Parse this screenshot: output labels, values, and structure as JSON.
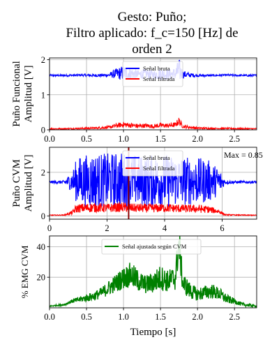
{
  "figure": {
    "title_lines": [
      "Gesto: Puño;",
      "Filtro aplicado: f_c=150 [Hz] de",
      "orden 2"
    ]
  },
  "chart_data": [
    {
      "id": "funcional",
      "type": "line",
      "ylabel_lines": [
        "Puño Funcional",
        "Amplitud [V]"
      ],
      "xlabel": "",
      "xlim": [
        0,
        2.8
      ],
      "ylim": [
        0,
        2.05
      ],
      "xticks": [
        0.0,
        0.5,
        1.0,
        1.5,
        2.0,
        2.5
      ],
      "xtick_labels": [
        "0.0",
        "0.5",
        "1.0",
        "1.5",
        "2.0",
        "2.5"
      ],
      "yticks": [
        0,
        1,
        2
      ],
      "ytick_labels": [
        "0",
        "1",
        "2"
      ],
      "grid": true,
      "legend_position": "top-center",
      "series": [
        {
          "name": "Señal bruta",
          "color": "#0000ff",
          "x": [
            0.0,
            0.2,
            0.4,
            0.6,
            0.8,
            0.9,
            1.0,
            1.1,
            1.2,
            1.3,
            1.4,
            1.5,
            1.6,
            1.7,
            1.75,
            1.8,
            1.9,
            2.0,
            2.2,
            2.4,
            2.6,
            2.8
          ],
          "y": [
            1.55,
            1.55,
            1.56,
            1.55,
            1.56,
            1.6,
            1.62,
            1.6,
            1.58,
            1.6,
            1.57,
            1.6,
            1.58,
            1.6,
            1.7,
            1.58,
            1.56,
            1.55,
            1.55,
            1.56,
            1.55,
            1.55
          ],
          "amplitude": [
            0.03,
            0.03,
            0.03,
            0.04,
            0.05,
            0.15,
            0.22,
            0.18,
            0.12,
            0.15,
            0.12,
            0.18,
            0.15,
            0.18,
            0.35,
            0.12,
            0.06,
            0.04,
            0.03,
            0.03,
            0.03,
            0.03
          ]
        },
        {
          "name": "Señal filtrada",
          "color": "#ff0000",
          "x": [
            0.0,
            0.2,
            0.4,
            0.6,
            0.8,
            0.9,
            1.0,
            1.1,
            1.2,
            1.3,
            1.4,
            1.5,
            1.6,
            1.7,
            1.75,
            1.8,
            1.9,
            2.0,
            2.2,
            2.4,
            2.6,
            2.8
          ],
          "y": [
            0.03,
            0.03,
            0.04,
            0.05,
            0.07,
            0.12,
            0.15,
            0.13,
            0.11,
            0.12,
            0.1,
            0.13,
            0.12,
            0.14,
            0.25,
            0.1,
            0.07,
            0.05,
            0.04,
            0.04,
            0.03,
            0.03
          ],
          "amplitude": [
            0.02,
            0.02,
            0.02,
            0.03,
            0.04,
            0.06,
            0.08,
            0.07,
            0.06,
            0.06,
            0.06,
            0.07,
            0.06,
            0.07,
            0.12,
            0.05,
            0.04,
            0.03,
            0.02,
            0.02,
            0.02,
            0.02
          ]
        }
      ]
    },
    {
      "id": "cvm",
      "type": "line",
      "ylabel_lines": [
        "Puño CVM",
        "Amplitud [V]"
      ],
      "xlabel": "",
      "xlim": [
        0,
        7.2
      ],
      "ylim": [
        -0.15,
        3.15
      ],
      "xticks": [
        0,
        2,
        4,
        6
      ],
      "xtick_labels": [
        "0",
        "2",
        "4",
        "6"
      ],
      "yticks": [
        0,
        2
      ],
      "ytick_labels": [
        "0",
        "2"
      ],
      "grid": true,
      "legend_position": "top-center",
      "annotation": {
        "text": "Max = 0.85"
      },
      "marker_x": 2.75,
      "series": [
        {
          "name": "Señal bruta",
          "color": "#0000ff",
          "x": [
            0.0,
            0.5,
            0.8,
            0.9,
            1.0,
            1.5,
            2.0,
            2.5,
            3.0,
            3.5,
            4.0,
            4.5,
            5.0,
            5.5,
            5.9,
            6.1,
            6.5,
            7.2
          ],
          "y": [
            1.55,
            1.55,
            1.58,
            1.6,
            1.62,
            1.6,
            1.62,
            1.6,
            1.62,
            1.6,
            1.6,
            1.62,
            1.6,
            1.6,
            1.58,
            1.55,
            1.55,
            1.55
          ],
          "amplitude": [
            0.06,
            0.08,
            0.5,
            0.9,
            1.1,
            1.3,
            1.25,
            1.35,
            1.2,
            1.2,
            1.25,
            1.15,
            1.1,
            1.0,
            0.6,
            0.1,
            0.06,
            0.06
          ]
        },
        {
          "name": "Señal filtrada",
          "color": "#ff0000",
          "x": [
            0.0,
            0.5,
            0.8,
            0.9,
            1.0,
            1.5,
            2.0,
            2.5,
            3.0,
            3.5,
            4.0,
            4.5,
            5.0,
            5.5,
            5.9,
            6.1,
            6.5,
            7.2
          ],
          "y": [
            0.03,
            0.04,
            0.15,
            0.3,
            0.35,
            0.38,
            0.36,
            0.4,
            0.36,
            0.35,
            0.37,
            0.34,
            0.33,
            0.3,
            0.2,
            0.05,
            0.04,
            0.03
          ],
          "amplitude": [
            0.02,
            0.02,
            0.1,
            0.18,
            0.2,
            0.22,
            0.2,
            0.22,
            0.2,
            0.2,
            0.2,
            0.19,
            0.18,
            0.17,
            0.1,
            0.03,
            0.02,
            0.02
          ]
        }
      ]
    },
    {
      "id": "emg",
      "type": "line",
      "ylabel_lines": [
        "% EMG CVM"
      ],
      "xlabel": "Tiempo [s]",
      "xlim": [
        0,
        2.8
      ],
      "ylim": [
        0,
        47
      ],
      "xticks": [
        0.0,
        0.5,
        1.0,
        1.5,
        2.0,
        2.5
      ],
      "xtick_labels": [
        "0.0",
        "0.5",
        "1.0",
        "1.5",
        "2.0",
        "2.5"
      ],
      "yticks": [
        20,
        40
      ],
      "ytick_labels": [
        "20",
        "40"
      ],
      "grid": true,
      "legend_position": "top-center",
      "series": [
        {
          "name": "Señal ajustada según CVM",
          "color": "#008000",
          "x": [
            0.0,
            0.2,
            0.3,
            0.4,
            0.5,
            0.6,
            0.7,
            0.8,
            0.9,
            1.0,
            1.1,
            1.2,
            1.3,
            1.4,
            1.5,
            1.6,
            1.7,
            1.75,
            1.8,
            1.9,
            2.0,
            2.1,
            2.2,
            2.3,
            2.4,
            2.5,
            2.6,
            2.8
          ],
          "y": [
            1,
            2,
            4,
            5,
            6,
            7,
            9,
            12,
            15,
            18,
            20,
            16,
            14,
            15,
            18,
            16,
            18,
            40,
            15,
            10,
            8,
            9,
            10,
            8,
            5,
            4,
            2,
            1
          ],
          "amplitude": [
            0.5,
            1,
            2,
            3,
            4,
            5,
            6,
            8,
            10,
            12,
            14,
            12,
            10,
            12,
            14,
            12,
            14,
            20,
            12,
            9,
            7,
            8,
            8,
            7,
            5,
            3,
            2,
            1
          ]
        }
      ]
    }
  ]
}
